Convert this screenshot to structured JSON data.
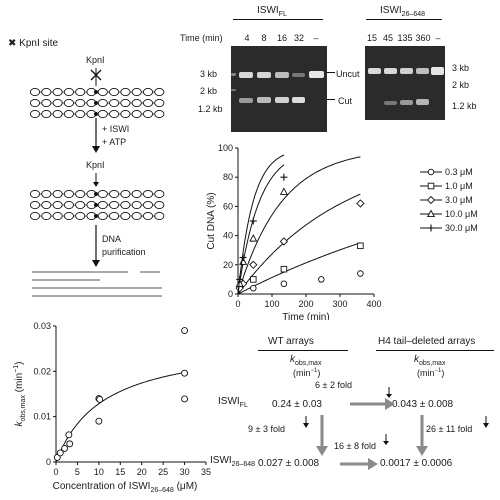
{
  "schematic": {
    "legend_symbol": "✖",
    "legend_label": "KpnI site",
    "kpni_top": "KpnI",
    "step1_line1": "+ ISWI",
    "step1_line2": "+ ATP",
    "kpni_mid": "KpnI",
    "step2_line1": "DNA",
    "step2_line2": "purification"
  },
  "gel_fl": {
    "title": "ISWI",
    "title_sub": "FL",
    "time_label": "Time (min)",
    "lanes": [
      "4",
      "8",
      "16",
      "32",
      "–"
    ],
    "markers": [
      "3 kb",
      "2 kb",
      "1.2 kb"
    ],
    "uncut_label": "Uncut",
    "cut_label": "Cut"
  },
  "gel_trunc": {
    "title": "ISWI",
    "title_sub": "26–648",
    "lanes": [
      "15",
      "45",
      "135",
      "360",
      "–"
    ],
    "markers": [
      "3 kb",
      "2 kb",
      "1.2 kb"
    ]
  },
  "chart_data": [
    {
      "type": "scatter",
      "ylabel": "Cut DNA (%)",
      "xlabel": "Time (min)",
      "xlim": [
        0,
        400
      ],
      "ylim": [
        0,
        100
      ],
      "xticks": [
        "0",
        "100",
        "200",
        "300",
        "400"
      ],
      "yticks": [
        "0",
        "20",
        "40",
        "60",
        "80",
        "100"
      ],
      "series": [
        {
          "name": "0.3 μM",
          "marker": "circle",
          "k": 0.0012,
          "points": [
            [
              45,
              4
            ],
            [
              135,
              7
            ],
            [
              245,
              10
            ],
            [
              360,
              14
            ]
          ]
        },
        {
          "name": "1.0 μM",
          "marker": "square",
          "k": 0.0032,
          "points": [
            [
              45,
              10
            ],
            [
              135,
              17
            ],
            [
              360,
              33
            ]
          ]
        },
        {
          "name": "3.0 μM",
          "marker": "diamond",
          "k": 0.0078,
          "points": [
            [
              5,
              4
            ],
            [
              15,
              7
            ],
            [
              45,
              20
            ],
            [
              135,
              36
            ],
            [
              360,
              62
            ]
          ]
        },
        {
          "name": "10.0 μM",
          "marker": "triangle",
          "k": 0.016,
          "points": [
            [
              5,
              7
            ],
            [
              15,
              22
            ],
            [
              45,
              38
            ],
            [
              135,
              70
            ]
          ]
        },
        {
          "name": "30.0 μM",
          "marker": "plus",
          "k": 0.0225,
          "points": [
            [
              5,
              10
            ],
            [
              15,
              25
            ],
            [
              45,
              50
            ],
            [
              135,
              80
            ]
          ]
        }
      ]
    },
    {
      "type": "scatter",
      "ylabel_main": "k",
      "ylabel_sub": "obs,max",
      "ylabel_unit": " (min",
      "ylabel_sup": "−1",
      "ylabel_close": ")",
      "xlabel_main": "Concentration of ISWI",
      "xlabel_sub": "26–648",
      "xlabel_unit": " (μM)",
      "xlim": [
        0,
        35
      ],
      "ylim": [
        0,
        0.03
      ],
      "xticks": [
        "0",
        "5",
        "10",
        "15",
        "20",
        "25",
        "30",
        "35"
      ],
      "yticks": [
        "0",
        "0.01",
        "0.02",
        "0.03"
      ],
      "points": [
        [
          0.3,
          0.001
        ],
        [
          1,
          0.002
        ],
        [
          2,
          0.003
        ],
        [
          3,
          0.006
        ],
        [
          3.2,
          0.004
        ],
        [
          10,
          0.014
        ],
        [
          10.2,
          0.0138
        ],
        [
          10,
          0.009
        ],
        [
          30,
          0.029
        ],
        [
          30,
          0.0196
        ],
        [
          30,
          0.0139
        ]
      ],
      "fit": {
        "vmax": 0.027,
        "km": 11
      }
    }
  ],
  "table": {
    "col1_header": "WT arrays",
    "col2_header": "H4 tail–deleted arrays",
    "k_main": "k",
    "k_sub": "obs,max",
    "unit_open": "(min",
    "unit_sup": "−1",
    "unit_close": ")",
    "row1_main": "ISWI",
    "row1_sub": "FL",
    "row2_main": "ISWI",
    "row2_sub": "26–648",
    "v11": "0.24 ± 0.03",
    "v12": "0.043 ± 0.008",
    "v21": "0.027 ± 0.008",
    "v22": "0.0017 ± 0.0006",
    "fold_top": "6 ± 2 fold",
    "fold_left": "9 ± 3 fold",
    "fold_right": "26 ± 11 fold",
    "fold_bottom": "16 ± 8 fold"
  }
}
